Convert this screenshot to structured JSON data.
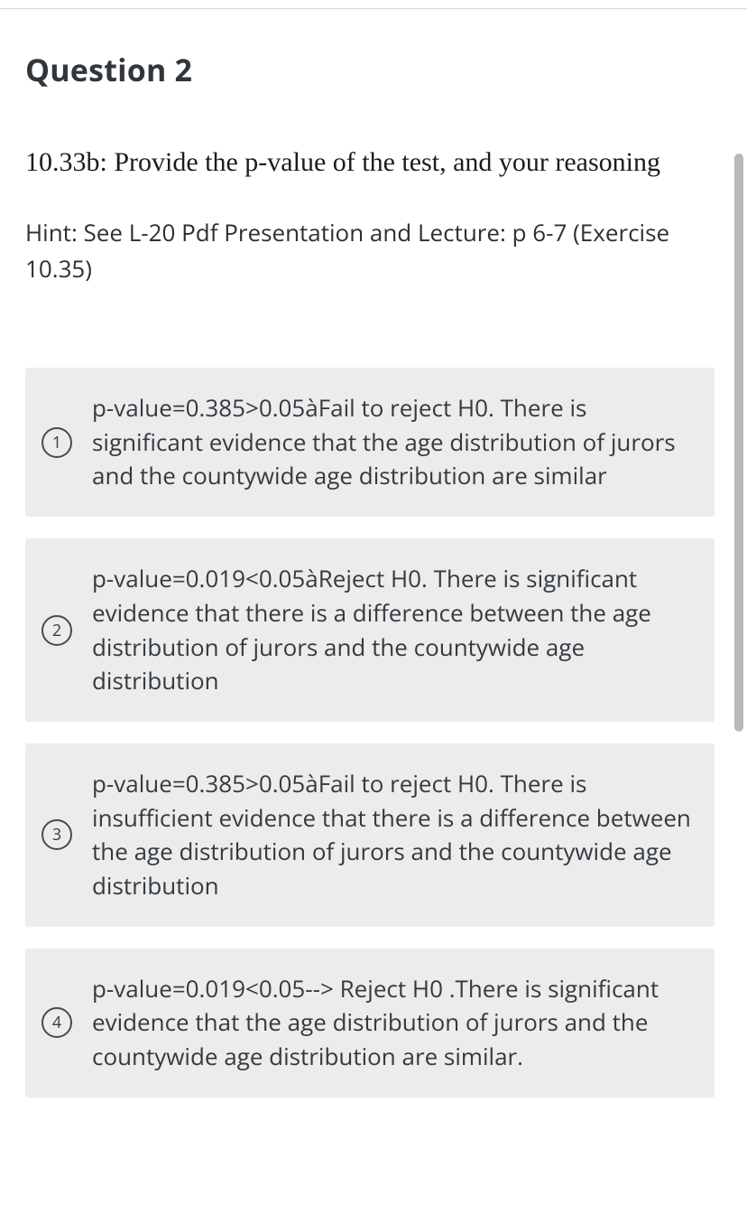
{
  "question": {
    "title": "Question 2",
    "prompt": "10.33b: Provide the p-value of the test, and your reasoning",
    "hint": "Hint: See L-20 Pdf Presentation and Lecture: p 6-7 (Exercise 10.35)"
  },
  "options": [
    {
      "num": "1",
      "text": "p-value=0.385>0.05àFail to reject H0.  There is significant evidence that the age distribution of jurors and the countywide age distribution  are similar"
    },
    {
      "num": "2",
      "text": "p-value=0.019<0.05àReject H0. There is significant evidence that there is a difference between the age distribution of jurors and the countywide age distribution"
    },
    {
      "num": "3",
      "text": "p-value=0.385>0.05àFail to reject H0. There is insufficient evidence that there is a difference between the age distribution of jurors and the countywide age distribution"
    },
    {
      "num": "4",
      "text": "p-value=0.019<0.05--> Reject H0 .There is significant evidence that the age distribution of jurors and the countywide age distribution are similar."
    }
  ],
  "colors": {
    "option_bg": "#ececec",
    "text": "#343a40",
    "title": "#30363c",
    "scroll_thumb": "#b8b8b8"
  }
}
